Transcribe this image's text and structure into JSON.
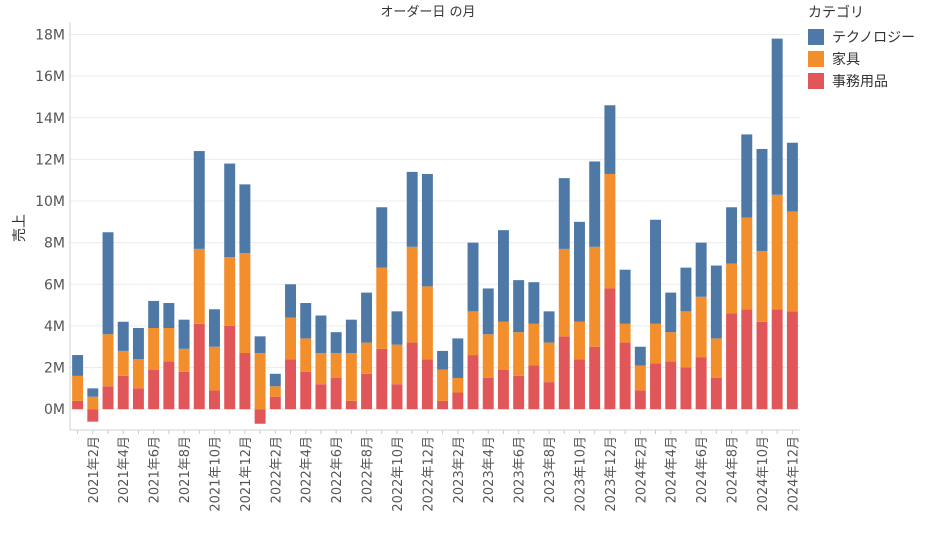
{
  "chart_data": {
    "type": "bar",
    "stacked": true,
    "title": "オーダー日 の月",
    "ylabel": "売上",
    "xlabel": "",
    "ylim": [
      -1000000,
      18600000
    ],
    "yticks": [
      0,
      2000000,
      4000000,
      6000000,
      8000000,
      10000000,
      12000000,
      14000000,
      16000000,
      18000000
    ],
    "ytick_labels": [
      "0M",
      "2M",
      "4M",
      "6M",
      "8M",
      "10M",
      "12M",
      "14M",
      "16M",
      "18M"
    ],
    "grid": true,
    "legend": {
      "title": "カテゴリ",
      "position": "top-right"
    },
    "categories": [
      "2021年1月",
      "2021年2月",
      "2021年3月",
      "2021年4月",
      "2021年5月",
      "2021年6月",
      "2021年7月",
      "2021年8月",
      "2021年9月",
      "2021年10月",
      "2021年11月",
      "2021年12月",
      "2022年1月",
      "2022年2月",
      "2022年3月",
      "2022年4月",
      "2022年5月",
      "2022年6月",
      "2022年7月",
      "2022年8月",
      "2022年9月",
      "2022年10月",
      "2022年11月",
      "2022年12月",
      "2023年1月",
      "2023年2月",
      "2023年3月",
      "2023年4月",
      "2023年5月",
      "2023年6月",
      "2023年7月",
      "2023年8月",
      "2023年9月",
      "2023年10月",
      "2023年11月",
      "2023年12月",
      "2024年1月",
      "2024年2月",
      "2024年3月",
      "2024年4月",
      "2024年5月",
      "2024年6月",
      "2024年7月",
      "2024年8月",
      "2024年9月",
      "2024年10月",
      "2024年11月",
      "2024年12月"
    ],
    "tick_labels": [
      "",
      "2021年2月",
      "",
      "2021年4月",
      "",
      "2021年6月",
      "",
      "2021年8月",
      "",
      "2021年10月",
      "",
      "2021年12月",
      "",
      "2022年2月",
      "",
      "2022年4月",
      "",
      "2022年6月",
      "",
      "2022年8月",
      "",
      "2022年10月",
      "",
      "2022年12月",
      "",
      "2023年2月",
      "",
      "2023年4月",
      "",
      "2023年6月",
      "",
      "2023年8月",
      "",
      "2023年10月",
      "",
      "2023年12月",
      "",
      "2024年2月",
      "",
      "2024年4月",
      "",
      "2024年6月",
      "",
      "2024年8月",
      "",
      "2024年10月",
      "",
      "2024年12月"
    ],
    "series": [
      {
        "name": "事務用品",
        "color": "#e15759",
        "values": [
          400000,
          -600000,
          1100000,
          1600000,
          1000000,
          1900000,
          2300000,
          1800000,
          4100000,
          900000,
          4000000,
          2700000,
          -700000,
          600000,
          2400000,
          1800000,
          1200000,
          1500000,
          400000,
          1700000,
          2900000,
          1200000,
          3200000,
          2400000,
          400000,
          800000,
          2600000,
          1500000,
          1900000,
          1600000,
          2100000,
          1300000,
          3500000,
          2400000,
          3000000,
          5800000,
          3200000,
          900000,
          2200000,
          2300000,
          2000000,
          2500000,
          1500000,
          4600000,
          4800000,
          4200000,
          4800000,
          4700000
        ]
      },
      {
        "name": "家具",
        "color": "#f28e2b",
        "values": [
          1200000,
          600000,
          2500000,
          1200000,
          1400000,
          2000000,
          1600000,
          1100000,
          3600000,
          2100000,
          3300000,
          4800000,
          2700000,
          500000,
          2000000,
          1600000,
          1500000,
          1200000,
          2300000,
          1500000,
          3900000,
          1900000,
          4600000,
          3500000,
          1500000,
          700000,
          2100000,
          2100000,
          2300000,
          2100000,
          2000000,
          1900000,
          4200000,
          1800000,
          4800000,
          5500000,
          900000,
          1200000,
          1900000,
          1400000,
          2700000,
          2900000,
          1900000,
          2400000,
          4400000,
          3400000,
          5500000,
          4800000
        ]
      },
      {
        "name": "テクノロジー",
        "color": "#4e79a7",
        "values": [
          1000000,
          400000,
          4900000,
          1400000,
          1500000,
          1300000,
          1200000,
          1400000,
          4700000,
          1800000,
          4500000,
          3300000,
          800000,
          600000,
          1600000,
          1700000,
          1800000,
          1000000,
          1600000,
          2400000,
          2900000,
          1600000,
          3600000,
          5400000,
          900000,
          1900000,
          3300000,
          2200000,
          4400000,
          2500000,
          2000000,
          1500000,
          3400000,
          4800000,
          4100000,
          3300000,
          2600000,
          900000,
          5000000,
          1900000,
          2100000,
          2600000,
          3500000,
          2700000,
          4000000,
          4900000,
          7500000,
          3300000
        ]
      }
    ]
  }
}
